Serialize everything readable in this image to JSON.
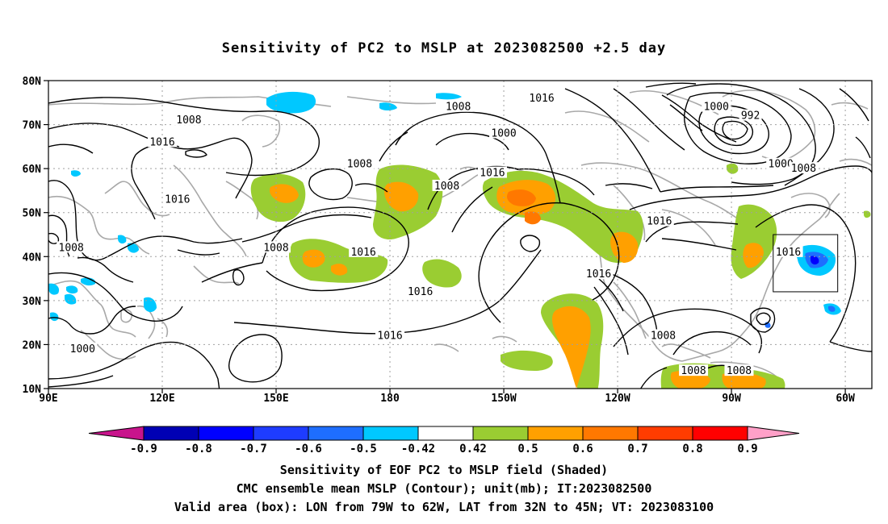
{
  "title": "Sensitivity of PC2 to MSLP at 2023082500 +2.5 day",
  "captions": [
    "Sensitivity of EOF PC2 to MSLP field (Shaded)",
    "CMC ensemble mean MSLP (Contour); unit(mb); IT:2023082500",
    "Valid area (box): LON from 79W to 62W, LAT from 32N to 45N; VT: 2023083100"
  ],
  "lat_labels": [
    "80N",
    "70N",
    "60N",
    "50N",
    "40N",
    "30N",
    "20N",
    "10N"
  ],
  "lon_labels": [
    "90E",
    "120E",
    "150E",
    "180",
    "150W",
    "120W",
    "90W",
    "60W"
  ],
  "colorbar": {
    "labels": [
      "-0.9",
      "-0.8",
      "-0.7",
      "-0.6",
      "-0.5",
      "-0.42",
      "0.42",
      "0.5",
      "0.6",
      "0.7",
      "0.8",
      "0.9"
    ],
    "colors": [
      "#0000b4",
      "#0000ff",
      "#1e3cff",
      "#1e6eff",
      "#00c8ff",
      "#ffffff",
      "#9acd32",
      "#ffa000",
      "#ff7800",
      "#ff3c00",
      "#ff0000"
    ],
    "low_end_color": "#c8148c",
    "high_end_color": "#ffa0c8"
  },
  "contour_labels": [
    {
      "text": "1008",
      "lon": 127,
      "lat": 71
    },
    {
      "text": "1016",
      "lon": 120,
      "lat": 66
    },
    {
      "text": "1016",
      "lon": 124,
      "lat": 53
    },
    {
      "text": "1008",
      "lon": 96,
      "lat": 42
    },
    {
      "text": "1008",
      "lon": 150,
      "lat": 42
    },
    {
      "text": "1000",
      "lon": 99,
      "lat": 19
    },
    {
      "text": "1008",
      "lon": 172,
      "lat": 61
    },
    {
      "text": "1016",
      "lon": 173,
      "lat": 41
    },
    {
      "text": "1008",
      "lon": 198,
      "lat": 74
    },
    {
      "text": "1016",
      "lon": 220,
      "lat": 76
    },
    {
      "text": "1000",
      "lon": 210,
      "lat": 68
    },
    {
      "text": "1008",
      "lon": 195,
      "lat": 56
    },
    {
      "text": "1016",
      "lon": 207,
      "lat": 59
    },
    {
      "text": "1016",
      "lon": 188,
      "lat": 32
    },
    {
      "text": "1016",
      "lon": 180,
      "lat": 22
    },
    {
      "text": "1016",
      "lon": 235,
      "lat": 36
    },
    {
      "text": "1008",
      "lon": 252,
      "lat": 22
    },
    {
      "text": "1016",
      "lon": 251,
      "lat": 48
    },
    {
      "text": "1008",
      "lon": 260,
      "lat": 14
    },
    {
      "text": "1008",
      "lon": 272,
      "lat": 14
    },
    {
      "text": "1000",
      "lon": 266,
      "lat": 74
    },
    {
      "text": "992",
      "lon": 275,
      "lat": 72
    },
    {
      "text": "1000",
      "lon": 283,
      "lat": 61
    },
    {
      "text": "1008",
      "lon": 289,
      "lat": 60
    },
    {
      "text": "1016",
      "lon": 285,
      "lat": 41
    }
  ],
  "valid_box": {
    "lon_min": -79,
    "lon_max": -62,
    "lat_min": 32,
    "lat_max": 45
  }
}
